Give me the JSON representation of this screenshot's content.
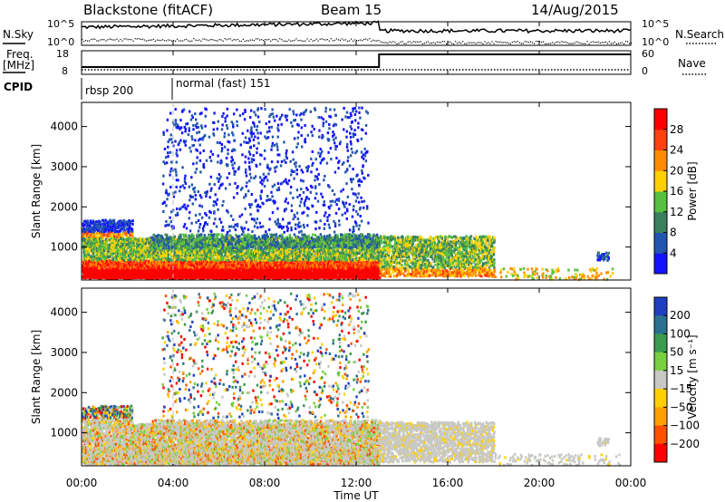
{
  "header": {
    "title": "Blackstone (fitACF)",
    "beam": "Beam 15",
    "date": "14/Aug/2015"
  },
  "noise_panel": {
    "left_label": "N.Sky",
    "right_label": "N.Search",
    "left_ticks": [
      "10^5",
      "10^0"
    ],
    "right_ticks": [
      "10^5",
      "10^0"
    ]
  },
  "freq_panel": {
    "left_label_1": "Freq.",
    "left_label_2": "[MHz]",
    "right_label": "Nave",
    "left_ticks": [
      "18",
      "8"
    ],
    "right_ticks": [
      "60",
      "0"
    ]
  },
  "cpid": {
    "label": "CPID",
    "modes": [
      {
        "name": "rbsp 200",
        "start_hour": 0
      },
      {
        "name": "normal (fast) 151",
        "start_hour": 4.0
      }
    ]
  },
  "chart_data": [
    {
      "type": "heatmap",
      "name": "power",
      "xlabel": "Time UT",
      "ylabel": "Slant Range [km]",
      "xlim": [
        0,
        24
      ],
      "ylim": [
        180,
        4600
      ],
      "y_ticks": [
        "1000",
        "2000",
        "3000",
        "4000"
      ],
      "colorbar": {
        "label": "Power [dB]",
        "ticks": [
          "4",
          "8",
          "12",
          "16",
          "20",
          "24",
          "28"
        ],
        "range": [
          0,
          32
        ],
        "colors": [
          "#1313ff",
          "#2255b0",
          "#3a8060",
          "#58c040",
          "#ffd000",
          "#ff8c00",
          "#ff4010",
          "#ff0000"
        ]
      }
    },
    {
      "type": "heatmap",
      "name": "velocity",
      "xlabel": "Time UT",
      "ylabel": "Slant Range [km]",
      "xlim": [
        0,
        24
      ],
      "ylim": [
        180,
        4600
      ],
      "y_ticks": [
        "1000",
        "2000",
        "3000",
        "4000"
      ],
      "colorbar": {
        "label": "Velocity [m s⁻¹]",
        "ticks": [
          "200",
          "100",
          "50",
          "15",
          "−15",
          "−50",
          "−100",
          "−200"
        ],
        "colors": [
          "#1f3fc0",
          "#2a7090",
          "#3a9a50",
          "#78d040",
          "#c8c8c4",
          "#ffd000",
          "#ffa000",
          "#ff5000",
          "#ff0000"
        ]
      }
    }
  ],
  "time_axis": {
    "ticks": [
      "00:00",
      "04:00",
      "08:00",
      "12:00",
      "16:00",
      "20:00",
      "00:00"
    ],
    "label": "Time UT"
  }
}
